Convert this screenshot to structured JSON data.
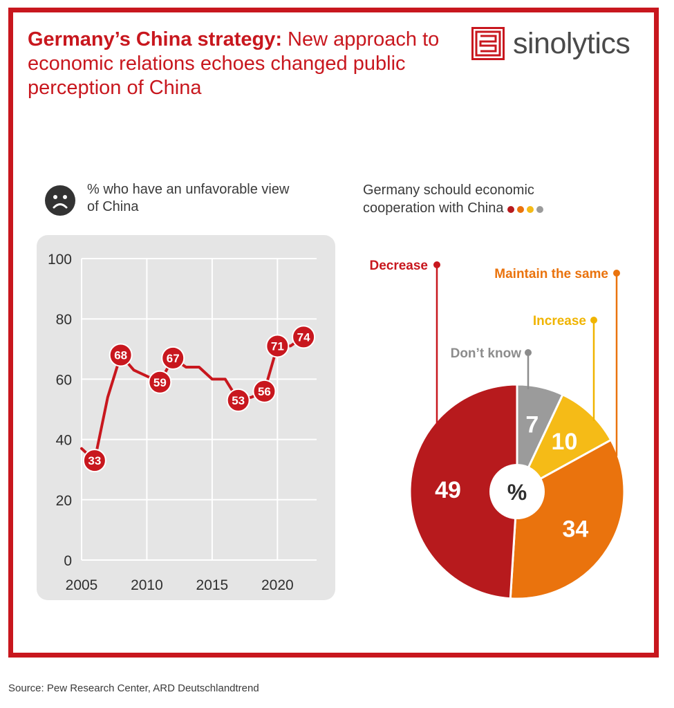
{
  "header": {
    "title_bold": "Germany’s China strategy:",
    "title_rest": " New approach to economic relations echoes changed public perception of China",
    "logo_text": "sinolytics"
  },
  "line_chart_label": "% who have an unfavorable view of China",
  "pie_chart_label": "Germany schould economic cooperation with China",
  "source": "Source: Pew Research Center, ARD Deutschlandtrend",
  "colors": {
    "brand_red": "#c8171e",
    "decrease": "#b71a1d",
    "maintain": "#ea730d",
    "increase": "#f5bb17",
    "dont_know": "#9b9b9b",
    "panel_bg": "#e5e5e5"
  },
  "chart_data": [
    {
      "type": "line",
      "title": "% who have an unfavorable view of China",
      "x": [
        2005,
        2006,
        2007,
        2008,
        2009,
        2011,
        2012,
        2013,
        2014,
        2015,
        2016,
        2017,
        2018,
        2019,
        2020,
        2021,
        2022
      ],
      "y": [
        37,
        33,
        54,
        68,
        63,
        59,
        67,
        64,
        64,
        60,
        60,
        53,
        54,
        56,
        71,
        71,
        74
      ],
      "labeled_points": [
        {
          "x": 2006,
          "y": 33,
          "label": "33"
        },
        {
          "x": 2008,
          "y": 68,
          "label": "68"
        },
        {
          "x": 2011,
          "y": 59,
          "label": "59"
        },
        {
          "x": 2012,
          "y": 67,
          "label": "67"
        },
        {
          "x": 2017,
          "y": 53,
          "label": "53"
        },
        {
          "x": 2019,
          "y": 56,
          "label": "56"
        },
        {
          "x": 2020,
          "y": 71,
          "label": "71"
        },
        {
          "x": 2022,
          "y": 74,
          "label": "74"
        }
      ],
      "xlim": [
        2005,
        2023
      ],
      "ylim": [
        0,
        100
      ],
      "x_ticks": [
        "2005",
        "2010",
        "2015",
        "2020"
      ],
      "y_ticks": [
        "0",
        "20",
        "40",
        "60",
        "80",
        "100"
      ],
      "grid": true,
      "line_color": "#c8171e"
    },
    {
      "type": "pie",
      "title": "Germany schould economic cooperation with China",
      "center_label": "%",
      "slices": [
        {
          "label": "Don’t know",
          "value": 7,
          "value_label": "7",
          "color": "#9b9b9b"
        },
        {
          "label": "Increase",
          "value": 10,
          "value_label": "10",
          "color": "#f5bb17"
        },
        {
          "label": "Maintain the same",
          "value": 34,
          "value_label": "34",
          "color": "#ea730d"
        },
        {
          "label": "Decrease",
          "value": 49,
          "value_label": "49",
          "color": "#b71a1d"
        }
      ]
    }
  ]
}
